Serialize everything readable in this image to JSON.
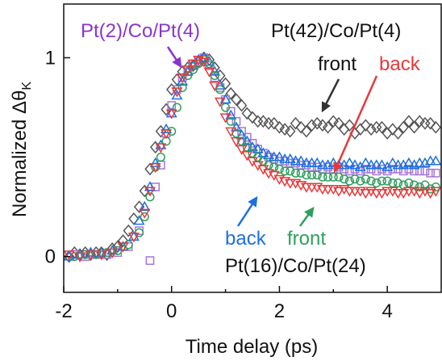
{
  "chart_data": {
    "type": "scatter",
    "xlabel": "Time delay (ps)",
    "ylabel_main": "Normalized Δθ",
    "ylabel_sub": "K",
    "xlim": [
      -2,
      5
    ],
    "ylim": [
      -0.18,
      1.27
    ],
    "xticks": [
      -2,
      0,
      2,
      4
    ],
    "xtick_labels": [
      "-2",
      "0",
      "2",
      "4"
    ],
    "yticks": [
      0,
      1
    ],
    "ytick_labels": [
      "0",
      "1"
    ],
    "grid": false,
    "series": [
      {
        "name": "Pt(42)/Co/Pt(4) front",
        "color": "#555555",
        "marker": "diamond",
        "x": [
          -1.9,
          -1.8,
          -1.7,
          -1.6,
          -1.5,
          -1.4,
          -1.3,
          -1.2,
          -1.1,
          -1.0,
          -0.9,
          -0.8,
          -0.7,
          -0.6,
          -0.5,
          -0.4,
          -0.3,
          -0.2,
          -0.1,
          0.0,
          0.1,
          0.2,
          0.3,
          0.4,
          0.5,
          0.6,
          0.7,
          0.8,
          0.9,
          1.0,
          1.1,
          1.2,
          1.3,
          1.4,
          1.5,
          1.6,
          1.7,
          1.8,
          1.9,
          2.0,
          2.1,
          2.2,
          2.3,
          2.4,
          2.5,
          2.6,
          2.7,
          2.8,
          2.9,
          3.0,
          3.1,
          3.2,
          3.3,
          3.4,
          3.5,
          3.6,
          3.7,
          3.8,
          3.9,
          4.0,
          4.1,
          4.2,
          4.3,
          4.4,
          4.5,
          4.6,
          4.7,
          4.8,
          4.9
        ],
        "y": [
          0.0,
          0.02,
          0.01,
          0.02,
          0.01,
          0.02,
          0.02,
          0.01,
          0.04,
          0.05,
          0.08,
          0.13,
          0.19,
          0.25,
          0.33,
          0.44,
          0.55,
          0.63,
          0.74,
          0.84,
          0.89,
          0.93,
          0.95,
          0.96,
          0.98,
          1.0,
          0.99,
          0.95,
          0.91,
          0.87,
          0.82,
          0.79,
          0.76,
          0.72,
          0.7,
          0.68,
          0.68,
          0.67,
          0.67,
          0.65,
          0.64,
          0.63,
          0.67,
          0.65,
          0.63,
          0.66,
          0.67,
          0.66,
          0.65,
          0.68,
          0.67,
          0.64,
          0.66,
          0.62,
          0.64,
          0.66,
          0.64,
          0.65,
          0.65,
          0.62,
          0.64,
          0.62,
          0.65,
          0.68,
          0.65,
          0.68,
          0.67,
          0.67,
          0.65
        ]
      },
      {
        "name": "Pt(2)/Co/Pt(4)",
        "color": "#a875d8",
        "marker": "square",
        "x": [
          -1.8,
          -1.6,
          -1.4,
          -1.2,
          -1.0,
          -0.8,
          -0.6,
          -0.4,
          -0.3,
          -0.2,
          -0.1,
          0.0,
          0.1,
          0.2,
          0.3,
          0.4,
          0.5,
          0.6,
          0.7,
          0.8,
          0.9,
          1.0,
          1.1,
          1.2,
          1.3,
          1.4,
          1.5,
          1.6,
          1.7,
          1.8,
          1.9,
          2.0,
          2.1,
          2.2,
          2.3,
          2.4,
          2.5,
          2.6,
          2.7,
          2.8,
          2.9,
          3.0,
          3.1,
          3.2,
          3.3,
          3.4,
          3.5,
          3.6,
          3.7,
          3.8,
          3.9,
          4.0,
          4.1,
          4.2,
          4.3,
          4.4,
          4.5,
          4.6,
          4.7,
          4.8,
          4.9
        ],
        "y": [
          0.01,
          0.0,
          0.01,
          0.01,
          0.02,
          0.05,
          0.13,
          -0.02,
          0.35,
          0.46,
          0.62,
          0.76,
          0.84,
          0.9,
          0.93,
          0.97,
          0.98,
          1.0,
          0.96,
          0.9,
          0.85,
          0.79,
          0.73,
          0.68,
          0.63,
          0.6,
          0.57,
          0.54,
          0.52,
          0.5,
          0.49,
          0.48,
          0.48,
          0.47,
          0.47,
          0.46,
          0.46,
          0.45,
          0.45,
          0.44,
          0.45,
          0.44,
          0.45,
          0.44,
          0.43,
          0.44,
          0.43,
          0.44,
          0.44,
          0.43,
          0.44,
          0.43,
          0.44,
          0.44,
          0.43,
          0.44,
          0.43,
          0.43,
          0.43,
          0.42,
          0.42
        ]
      },
      {
        "name": "back (blue)",
        "color": "#1e6fe0",
        "marker": "triangle-up",
        "x": [
          -1.9,
          -1.7,
          -1.5,
          -1.3,
          -1.1,
          -0.9,
          -0.7,
          -0.6,
          -0.5,
          -0.4,
          -0.3,
          -0.2,
          -0.1,
          0.0,
          0.1,
          0.2,
          0.3,
          0.4,
          0.5,
          0.6,
          0.7,
          0.8,
          0.9,
          1.0,
          1.1,
          1.2,
          1.3,
          1.4,
          1.5,
          1.6,
          1.7,
          1.8,
          1.9,
          2.0,
          2.1,
          2.2,
          2.3,
          2.4,
          2.5,
          2.6,
          2.7,
          2.8,
          2.9,
          3.0,
          3.1,
          3.2,
          3.3,
          3.4,
          3.5,
          3.6,
          3.7,
          3.8,
          3.9,
          4.0,
          4.1,
          4.2,
          4.3,
          4.4,
          4.5,
          4.6,
          4.7,
          4.8,
          4.9
        ],
        "y": [
          0.0,
          0.01,
          0.02,
          0.02,
          0.03,
          0.05,
          0.1,
          0.18,
          0.25,
          0.35,
          0.47,
          0.56,
          0.64,
          0.72,
          0.81,
          0.88,
          0.93,
          0.96,
          0.99,
          1.0,
          0.98,
          0.93,
          0.86,
          0.79,
          0.71,
          0.65,
          0.61,
          0.58,
          0.55,
          0.54,
          0.52,
          0.51,
          0.5,
          0.5,
          0.49,
          0.49,
          0.48,
          0.48,
          0.47,
          0.47,
          0.47,
          0.46,
          0.46,
          0.47,
          0.46,
          0.46,
          0.47,
          0.46,
          0.45,
          0.47,
          0.46,
          0.46,
          0.46,
          0.45,
          0.47,
          0.46,
          0.46,
          0.47,
          0.46,
          0.47,
          0.47,
          0.48,
          0.48
        ]
      },
      {
        "name": "front (green)",
        "color": "#2e9e5e",
        "marker": "circle",
        "x": [
          -1.8,
          -1.6,
          -1.4,
          -1.2,
          -1.0,
          -0.8,
          -0.6,
          -0.5,
          -0.4,
          -0.3,
          -0.2,
          -0.1,
          0.0,
          0.1,
          0.2,
          0.3,
          0.4,
          0.5,
          0.6,
          0.7,
          0.8,
          0.9,
          1.0,
          1.1,
          1.2,
          1.3,
          1.4,
          1.5,
          1.6,
          1.7,
          1.8,
          1.9,
          2.0,
          2.1,
          2.2,
          2.3,
          2.4,
          2.5,
          2.6,
          2.7,
          2.8,
          2.9,
          3.0,
          3.1,
          3.2,
          3.3,
          3.4,
          3.5,
          3.6,
          3.7,
          3.8,
          3.9,
          4.0,
          4.1,
          4.2,
          4.3,
          4.4,
          4.5,
          4.6,
          4.7,
          4.8,
          4.9
        ],
        "y": [
          0.0,
          0.01,
          0.01,
          0.02,
          0.03,
          0.06,
          0.12,
          0.2,
          0.3,
          0.45,
          0.5,
          0.58,
          0.63,
          0.75,
          0.85,
          0.91,
          0.94,
          0.97,
          0.99,
          0.97,
          0.91,
          0.84,
          0.75,
          0.68,
          0.62,
          0.58,
          0.55,
          0.52,
          0.5,
          0.48,
          0.46,
          0.45,
          0.44,
          0.43,
          0.43,
          0.42,
          0.42,
          0.41,
          0.41,
          0.41,
          0.4,
          0.4,
          0.4,
          0.4,
          0.39,
          0.38,
          0.39,
          0.38,
          0.39,
          0.38,
          0.37,
          0.38,
          0.38,
          0.37,
          0.37,
          0.36,
          0.37,
          0.36,
          0.35,
          0.36,
          0.34,
          0.35
        ]
      },
      {
        "name": "back (red)",
        "color": "#e8383a",
        "marker": "triangle-down",
        "x": [
          -1.9,
          -1.7,
          -1.5,
          -1.3,
          -1.1,
          -0.9,
          -0.7,
          -0.5,
          -0.4,
          -0.3,
          -0.2,
          -0.1,
          0.0,
          0.1,
          0.2,
          0.3,
          0.4,
          0.5,
          0.6,
          0.7,
          0.8,
          0.9,
          1.0,
          1.1,
          1.2,
          1.3,
          1.4,
          1.5,
          1.6,
          1.7,
          1.8,
          1.9,
          2.0,
          2.1,
          2.2,
          2.3,
          2.4,
          2.5,
          2.6,
          2.7,
          2.8,
          2.9,
          3.0,
          3.1,
          3.2,
          3.3,
          3.4,
          3.5,
          3.6,
          3.7,
          3.8,
          3.9,
          4.0,
          4.1,
          4.2,
          4.3,
          4.4,
          4.5,
          4.6,
          4.7,
          4.8,
          4.9
        ],
        "y": [
          0.01,
          0.0,
          0.01,
          0.01,
          0.02,
          0.05,
          0.1,
          0.22,
          0.33,
          0.45,
          0.55,
          0.62,
          0.72,
          0.83,
          0.9,
          0.94,
          0.97,
          0.99,
          0.98,
          0.93,
          0.86,
          0.78,
          0.7,
          0.63,
          0.58,
          0.54,
          0.51,
          0.48,
          0.46,
          0.44,
          0.42,
          0.41,
          0.39,
          0.38,
          0.37,
          0.37,
          0.36,
          0.35,
          0.35,
          0.35,
          0.34,
          0.34,
          0.34,
          0.33,
          0.34,
          0.33,
          0.33,
          0.33,
          0.32,
          0.33,
          0.32,
          0.32,
          0.33,
          0.33,
          0.32,
          0.32,
          0.33,
          0.33,
          0.32,
          0.33,
          0.32,
          0.33
        ]
      }
    ],
    "annotations": [
      {
        "text": "Pt(2)/Co/Pt(4)",
        "color": "#8a35c9"
      },
      {
        "text": "Pt(42)/Co/Pt(4)",
        "color": "#111111"
      },
      {
        "text": "front",
        "color": "#111111"
      },
      {
        "text": "back",
        "color": "#e8383a"
      },
      {
        "text": "back",
        "color": "#1e6fe0"
      },
      {
        "text": "front",
        "color": "#2e9e5e"
      },
      {
        "text": "Pt(16)/Co/Pt(24)",
        "color": "#111111"
      }
    ]
  }
}
